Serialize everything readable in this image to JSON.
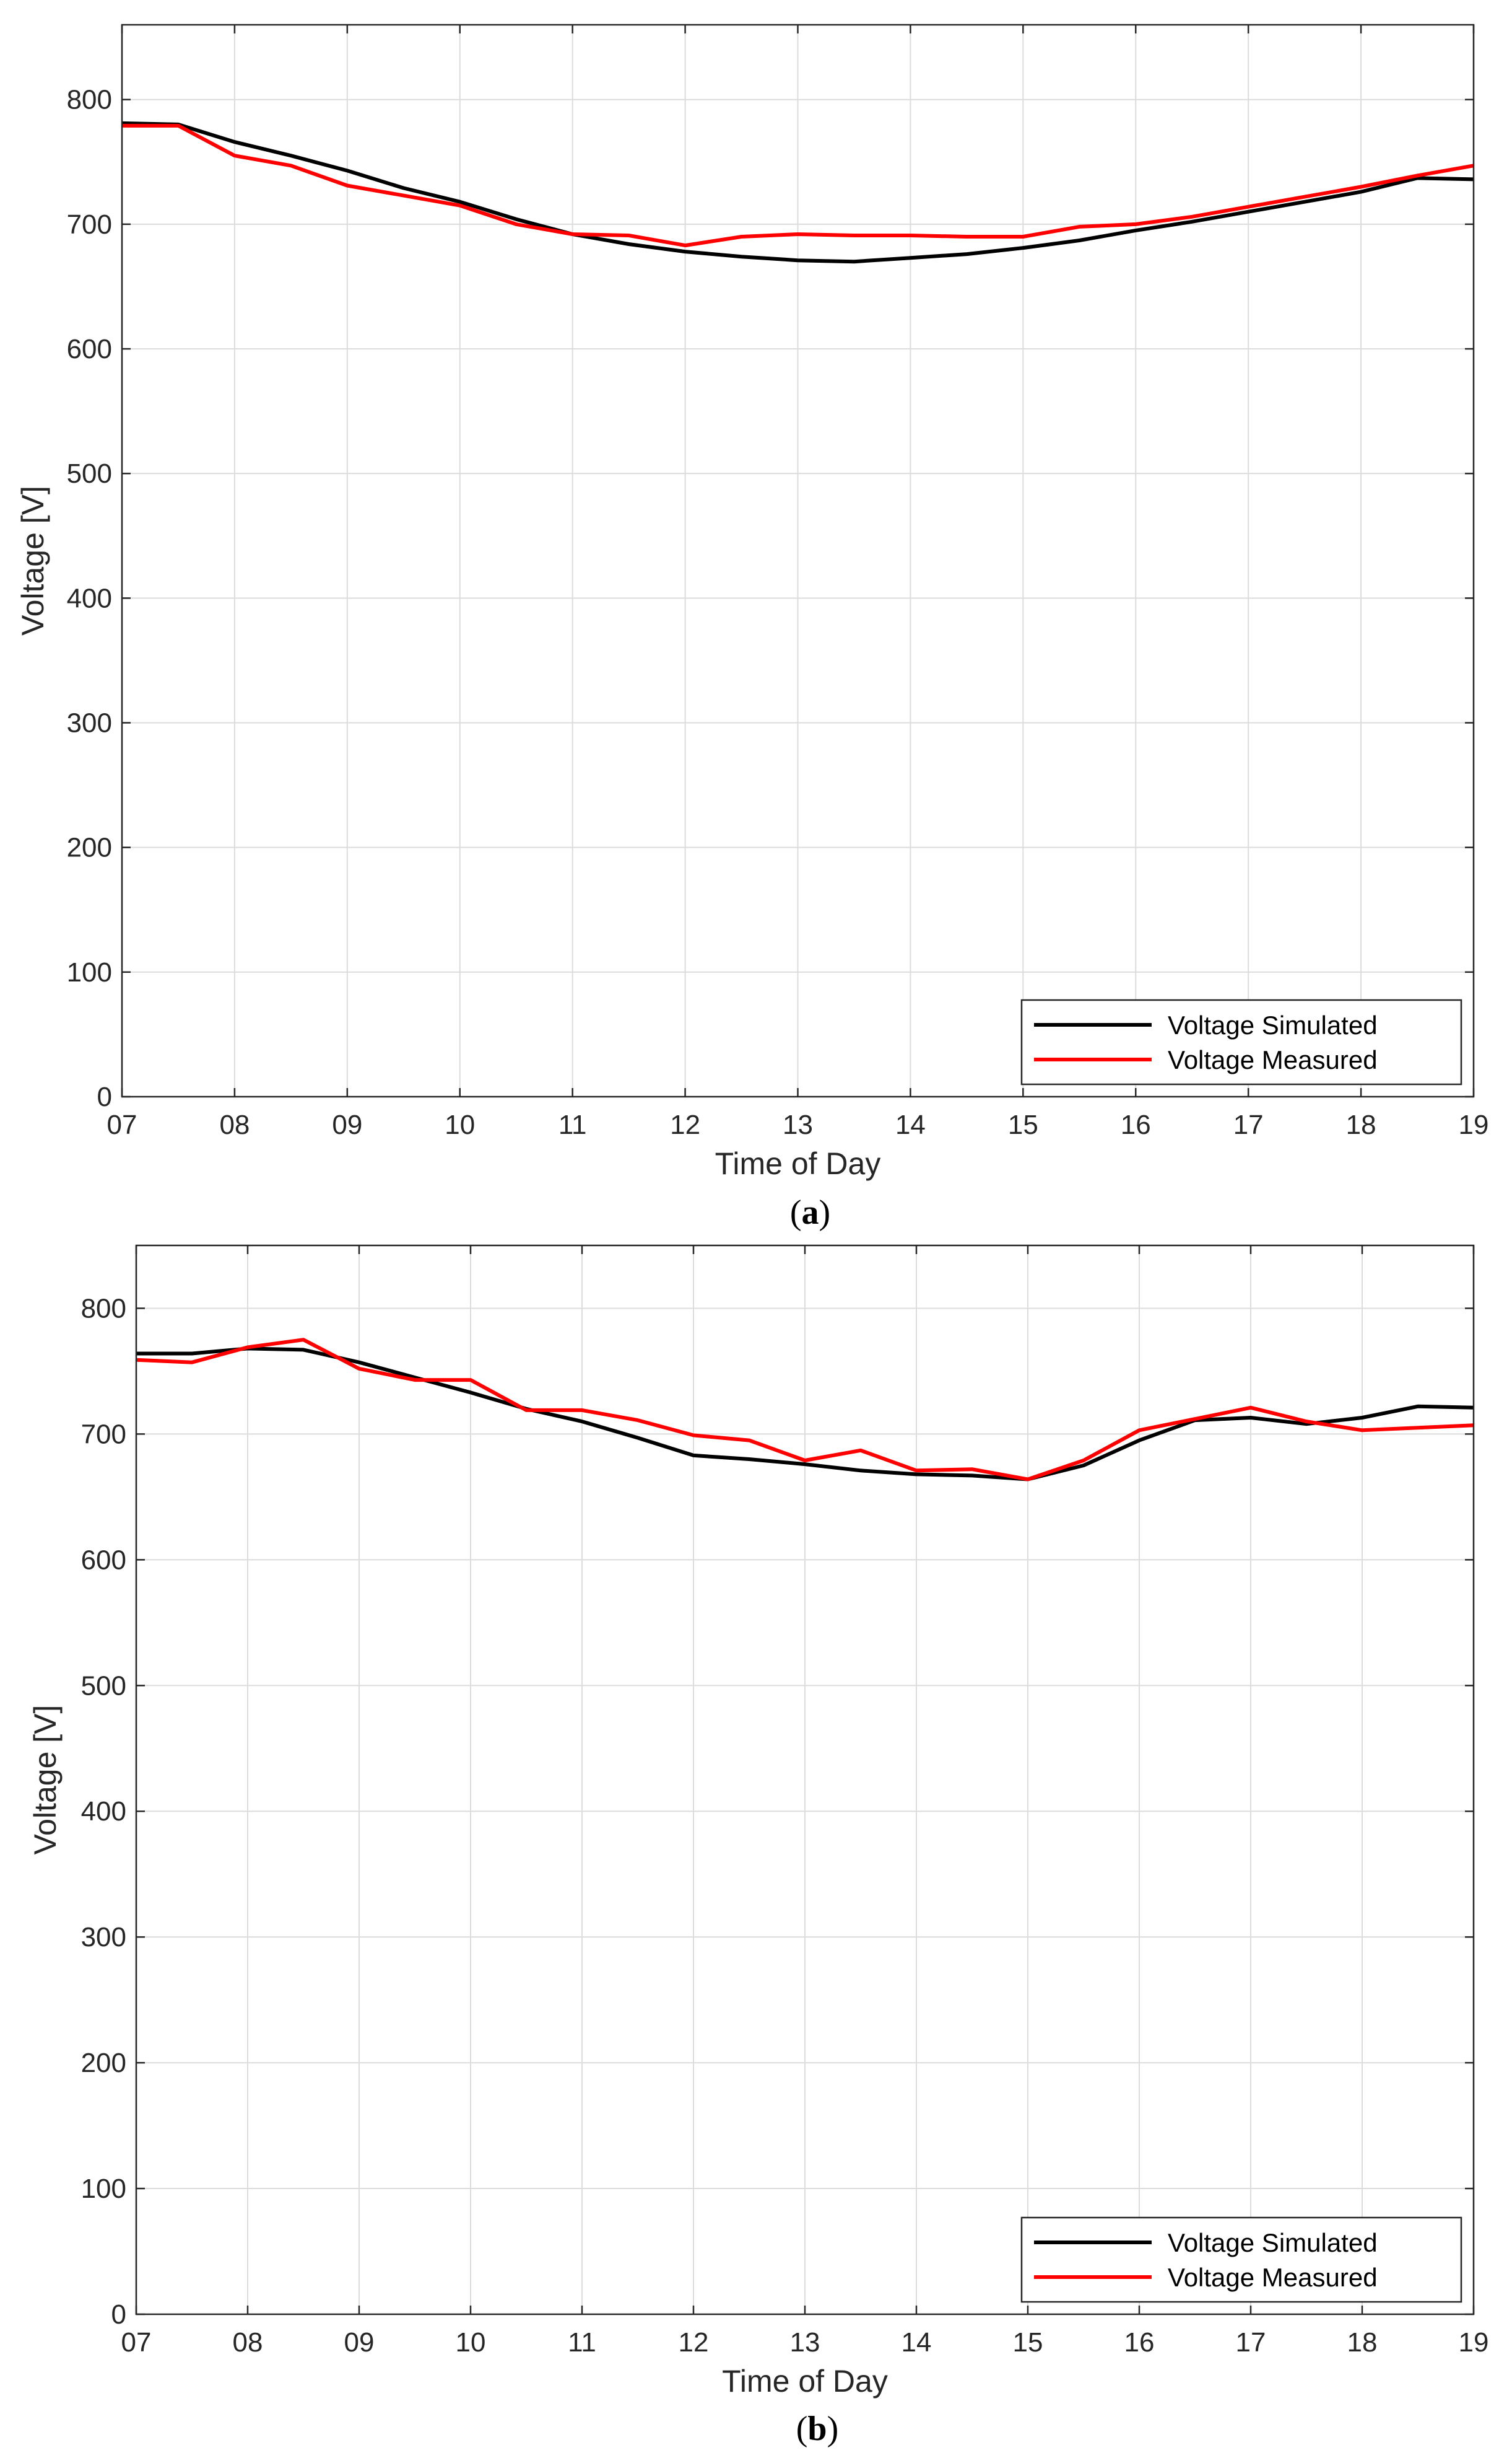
{
  "colors": {
    "simulated": "#000000",
    "measured": "#ff0000",
    "grid": "#dcdcdc",
    "axis": "#262626"
  },
  "chart_data": [
    {
      "type": "line",
      "panel_label": "a",
      "xlabel": "Time of Day",
      "ylabel": "Voltage [V]",
      "xlim": [
        7,
        19
      ],
      "ylim": [
        0,
        860
      ],
      "x_ticks": [
        "07",
        "08",
        "09",
        "10",
        "11",
        "12",
        "13",
        "14",
        "15",
        "16",
        "17",
        "18",
        "19"
      ],
      "y_ticks": [
        0,
        100,
        200,
        300,
        400,
        500,
        600,
        700,
        800
      ],
      "grid": true,
      "legend_position": "bottom-right",
      "x": [
        7,
        7.5,
        8,
        8.5,
        9,
        9.5,
        10,
        10.5,
        11,
        11.5,
        12,
        12.5,
        13,
        13.5,
        14,
        14.5,
        15,
        15.5,
        16,
        16.5,
        17,
        17.5,
        18,
        18.5,
        19
      ],
      "series": [
        {
          "name": "Voltage Simulated",
          "color": "#000000",
          "values": [
            781,
            780,
            766,
            755,
            743,
            729,
            718,
            704,
            692,
            684,
            678,
            674,
            671,
            670,
            673,
            676,
            681,
            687,
            695,
            702,
            710,
            718,
            726,
            737,
            736
          ]
        },
        {
          "name": "Voltage Measured",
          "color": "#ff0000",
          "values": [
            779,
            779,
            755,
            747,
            731,
            723,
            715,
            700,
            692,
            691,
            683,
            690,
            692,
            691,
            691,
            690,
            690,
            698,
            700,
            706,
            714,
            722,
            730,
            739,
            747
          ]
        }
      ]
    },
    {
      "type": "line",
      "panel_label": "b",
      "xlabel": "Time of Day",
      "ylabel": "Voltage [V]",
      "xlim": [
        7,
        19
      ],
      "ylim": [
        0,
        850
      ],
      "x_ticks": [
        "07",
        "08",
        "09",
        "10",
        "11",
        "12",
        "13",
        "14",
        "15",
        "16",
        "17",
        "18",
        "19"
      ],
      "y_ticks": [
        0,
        100,
        200,
        300,
        400,
        500,
        600,
        700,
        800
      ],
      "grid": true,
      "legend_position": "bottom-right",
      "x": [
        7,
        7.5,
        8,
        8.5,
        9,
        9.5,
        10,
        10.5,
        11,
        11.5,
        12,
        12.5,
        13,
        13.5,
        14,
        14.5,
        15,
        15.5,
        16,
        16.5,
        17,
        17.5,
        18,
        18.5,
        19
      ],
      "series": [
        {
          "name": "Voltage Simulated",
          "color": "#000000",
          "values": [
            764,
            764,
            768,
            767,
            757,
            745,
            733,
            720,
            710,
            697,
            683,
            680,
            676,
            671,
            668,
            667,
            664,
            675,
            695,
            711,
            713,
            708,
            713,
            722,
            721
          ]
        },
        {
          "name": "Voltage Measured",
          "color": "#ff0000",
          "values": [
            759,
            757,
            769,
            775,
            752,
            743,
            743,
            719,
            719,
            711,
            699,
            695,
            679,
            687,
            671,
            672,
            664,
            679,
            703,
            712,
            721,
            710,
            703,
            705,
            707
          ]
        }
      ]
    }
  ]
}
